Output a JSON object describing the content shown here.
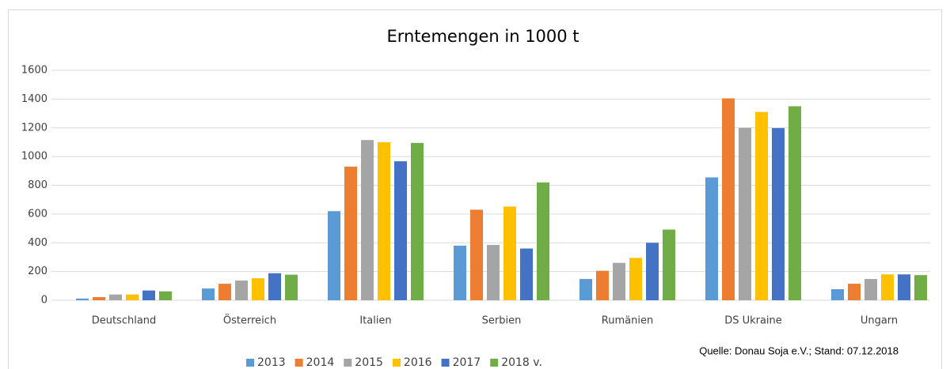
{
  "chart_data": {
    "type": "bar",
    "title": "Erntemengen in 1000 t",
    "categories": [
      "Deutschland",
      "Österreich",
      "Italien",
      "Serbien",
      "Rumänien",
      "DS Ukraine",
      "Ungarn"
    ],
    "series": [
      {
        "name": "2013",
        "color": "#5b9bd5",
        "values": [
          12,
          82,
          620,
          380,
          148,
          855,
          77
        ]
      },
      {
        "name": "2014",
        "color": "#ed7d31",
        "values": [
          22,
          115,
          930,
          630,
          205,
          1405,
          115
        ]
      },
      {
        "name": "2015",
        "color": "#a5a5a5",
        "values": [
          40,
          137,
          1115,
          385,
          260,
          1200,
          148
        ]
      },
      {
        "name": "2016",
        "color": "#ffc000",
        "values": [
          40,
          153,
          1100,
          652,
          295,
          1310,
          180
        ]
      },
      {
        "name": "2017",
        "color": "#4472c4",
        "values": [
          68,
          188,
          967,
          360,
          400,
          1198,
          180
        ]
      },
      {
        "name": "2018 v.",
        "color": "#70ad47",
        "values": [
          62,
          178,
          1095,
          820,
          492,
          1350,
          175
        ]
      }
    ],
    "ylim": [
      0,
      1600
    ],
    "yticks": [
      0,
      200,
      400,
      600,
      800,
      1000,
      1200,
      1400,
      1600
    ],
    "grid": true,
    "legend": "bottom",
    "annotation": "Quelle: Donau Soja e.V.; Stand: 07.12.2018"
  }
}
